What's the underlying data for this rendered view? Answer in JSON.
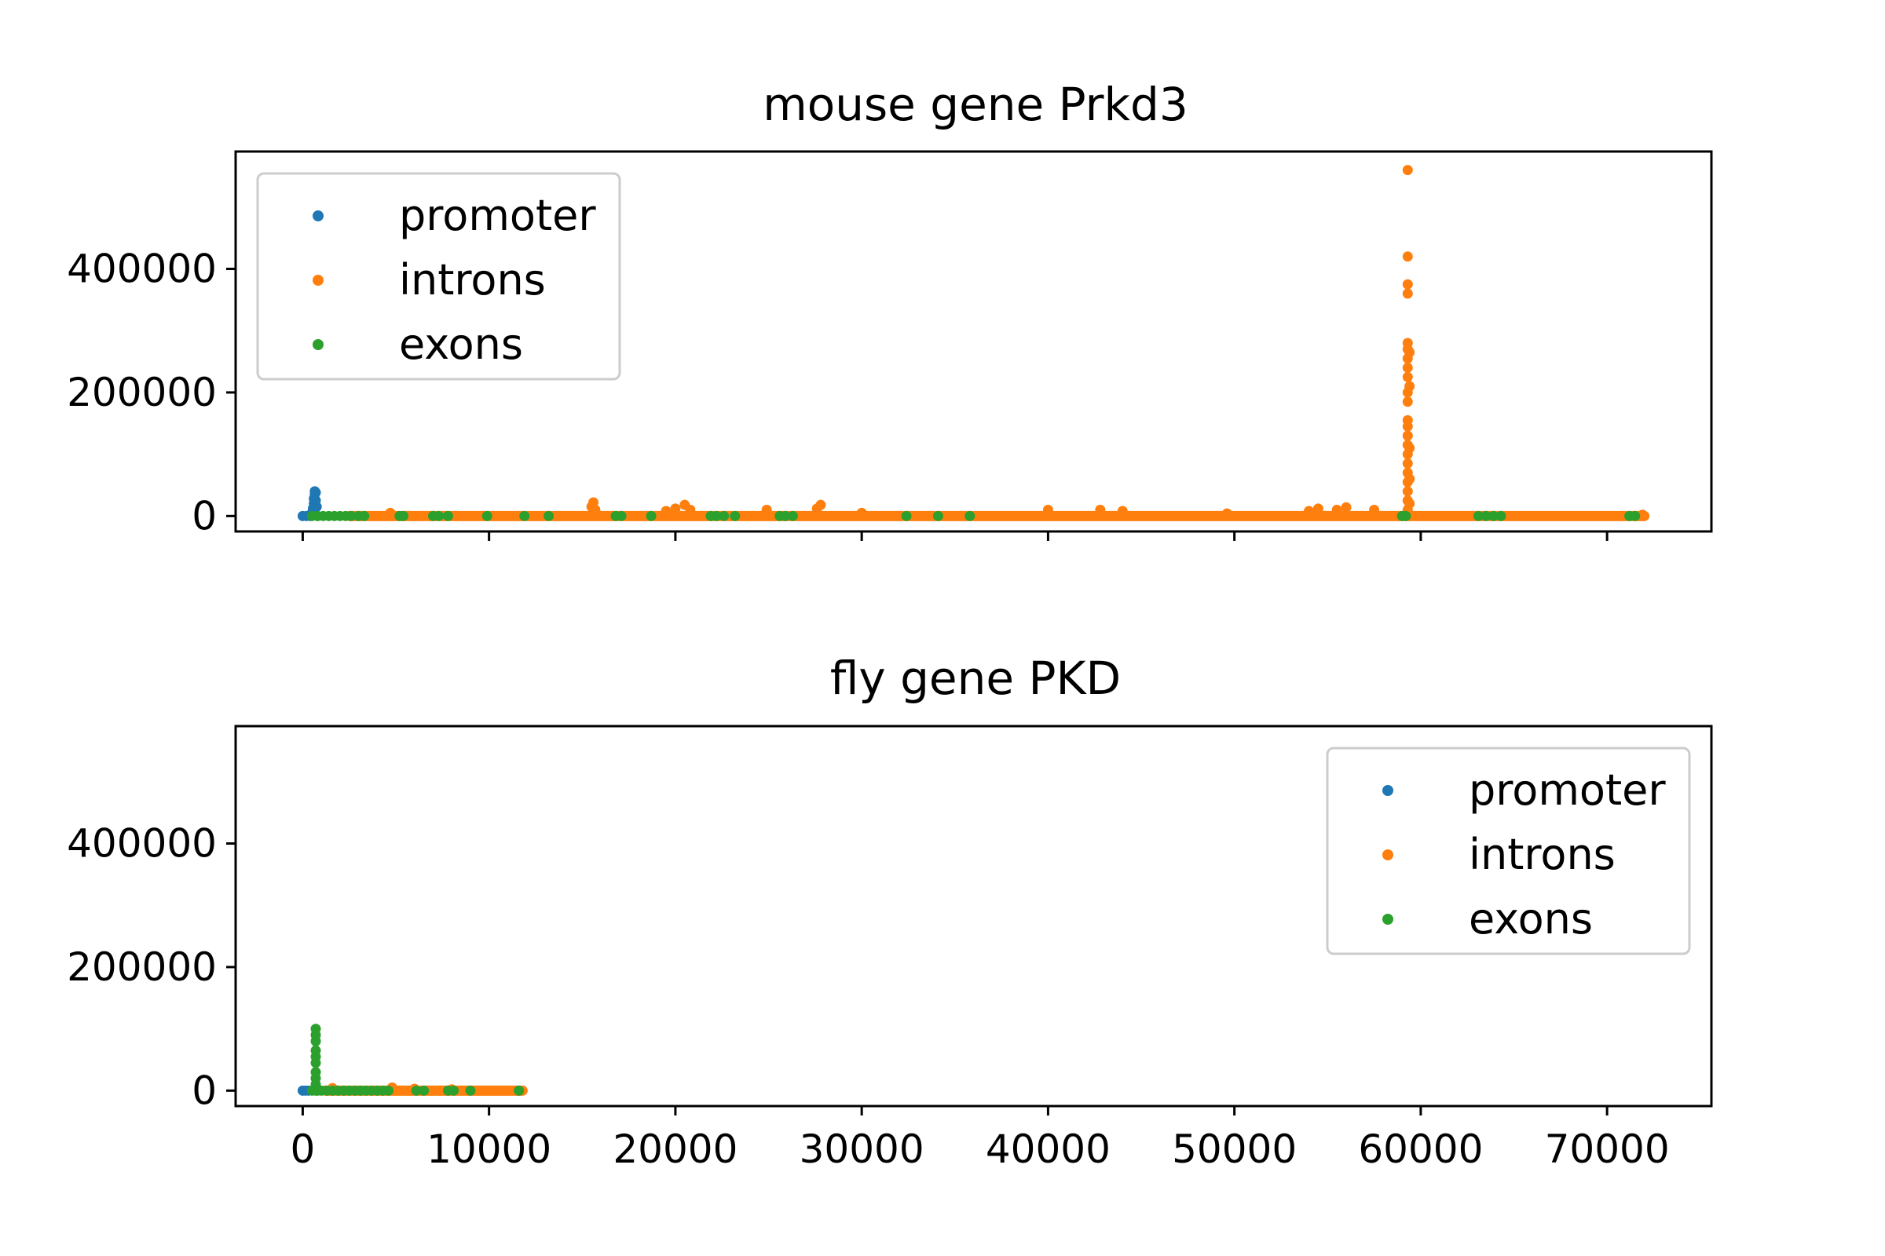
{
  "chart_data": [
    {
      "type": "scatter",
      "title": "mouse gene Prkd3",
      "xlabel": "",
      "ylabel": "",
      "xlim": [
        -3600,
        75600
      ],
      "ylim": [
        -25000,
        590000
      ],
      "x_ticks": [
        0,
        10000,
        20000,
        30000,
        40000,
        50000,
        60000,
        70000
      ],
      "x_tick_labels_visible": false,
      "y_ticks": [
        0,
        200000,
        400000
      ],
      "y_tick_labels": [
        "0",
        "200000",
        "400000"
      ],
      "grid": false,
      "legend_position": "upper-left",
      "series": [
        {
          "name": "promoter",
          "color": "#1f77b4",
          "points": [
            [
              0,
              0
            ],
            [
              200,
              0
            ],
            [
              400,
              0
            ],
            [
              500,
              5000
            ],
            [
              550,
              12000
            ],
            [
              600,
              20000
            ],
            [
              600,
              28000
            ],
            [
              650,
              35000
            ],
            [
              650,
              40000
            ],
            [
              700,
              38000
            ],
            [
              700,
              25000
            ],
            [
              750,
              15000
            ],
            [
              800,
              0
            ]
          ]
        },
        {
          "name": "introns",
          "color": "#ff7f0e",
          "baseline": {
            "from": 2500,
            "to": 72000,
            "value": 0
          },
          "points": [
            [
              4700,
              5000
            ],
            [
              15500,
              15000
            ],
            [
              15600,
              22000
            ],
            [
              15700,
              10000
            ],
            [
              19500,
              8000
            ],
            [
              20000,
              12000
            ],
            [
              20500,
              18000
            ],
            [
              20800,
              10000
            ],
            [
              24900,
              10000
            ],
            [
              27600,
              12000
            ],
            [
              27800,
              18000
            ],
            [
              30000,
              5000
            ],
            [
              40000,
              10000
            ],
            [
              42800,
              10000
            ],
            [
              44000,
              8000
            ],
            [
              49600,
              4000
            ],
            [
              54000,
              8000
            ],
            [
              54500,
              12000
            ],
            [
              55500,
              10000
            ],
            [
              56000,
              14000
            ],
            [
              57500,
              10000
            ],
            [
              59300,
              10000
            ],
            [
              59300,
              25000
            ],
            [
              59300,
              40000
            ],
            [
              59300,
              55000
            ],
            [
              59300,
              70000
            ],
            [
              59300,
              85000
            ],
            [
              59300,
              100000
            ],
            [
              59300,
              115000
            ],
            [
              59300,
              130000
            ],
            [
              59300,
              145000
            ],
            [
              59300,
              155000
            ],
            [
              59300,
              185000
            ],
            [
              59300,
              200000
            ],
            [
              59300,
              225000
            ],
            [
              59300,
              240000
            ],
            [
              59300,
              255000
            ],
            [
              59300,
              270000
            ],
            [
              59300,
              280000
            ],
            [
              59300,
              360000
            ],
            [
              59300,
              375000
            ],
            [
              59300,
              420000
            ],
            [
              59300,
              560000
            ],
            [
              59400,
              20000
            ],
            [
              59400,
              60000
            ],
            [
              59400,
              110000
            ],
            [
              59400,
              210000
            ],
            [
              59400,
              265000
            ],
            [
              71900,
              2000
            ]
          ]
        },
        {
          "name": "exons",
          "color": "#2ca02c",
          "points": [
            [
              500,
              0
            ],
            [
              800,
              0
            ],
            [
              1100,
              0
            ],
            [
              1400,
              0
            ],
            [
              1700,
              0
            ],
            [
              2000,
              0
            ],
            [
              2300,
              0
            ],
            [
              2600,
              0
            ],
            [
              3000,
              0
            ],
            [
              3300,
              0
            ],
            [
              5200,
              0
            ],
            [
              5400,
              0
            ],
            [
              7000,
              0
            ],
            [
              7300,
              0
            ],
            [
              7800,
              0
            ],
            [
              9900,
              0
            ],
            [
              11900,
              0
            ],
            [
              13200,
              0
            ],
            [
              16800,
              0
            ],
            [
              17100,
              0
            ],
            [
              18700,
              0
            ],
            [
              21900,
              0
            ],
            [
              22200,
              0
            ],
            [
              22600,
              0
            ],
            [
              23200,
              0
            ],
            [
              25600,
              0
            ],
            [
              25900,
              0
            ],
            [
              26300,
              0
            ],
            [
              32400,
              0
            ],
            [
              34100,
              0
            ],
            [
              35800,
              0
            ],
            [
              59000,
              0
            ],
            [
              59200,
              0
            ],
            [
              63100,
              0
            ],
            [
              63500,
              0
            ],
            [
              63900,
              0
            ],
            [
              64300,
              0
            ],
            [
              71200,
              0
            ],
            [
              71500,
              0
            ]
          ]
        }
      ]
    },
    {
      "type": "scatter",
      "title": "fly gene PKD",
      "xlabel": "",
      "ylabel": "",
      "xlim": [
        -3600,
        75600
      ],
      "ylim": [
        -25000,
        590000
      ],
      "x_ticks": [
        0,
        10000,
        20000,
        30000,
        40000,
        50000,
        60000,
        70000
      ],
      "x_tick_labels": [
        "0",
        "10000",
        "20000",
        "30000",
        "40000",
        "50000",
        "60000",
        "70000"
      ],
      "y_ticks": [
        0,
        200000,
        400000
      ],
      "y_tick_labels": [
        "0",
        "200000",
        "400000"
      ],
      "grid": false,
      "legend_position": "upper-right",
      "series": [
        {
          "name": "promoter",
          "color": "#1f77b4",
          "points": [
            [
              0,
              0
            ],
            [
              150,
              0
            ],
            [
              300,
              0
            ]
          ]
        },
        {
          "name": "introns",
          "color": "#ff7f0e",
          "baseline": {
            "from": 1200,
            "to": 11800,
            "value": 0
          },
          "points": [
            [
              1600,
              4000
            ],
            [
              4800,
              5000
            ],
            [
              6000,
              3000
            ],
            [
              8000,
              2000
            ],
            [
              11600,
              0
            ]
          ]
        },
        {
          "name": "exons",
          "color": "#2ca02c",
          "points": [
            [
              500,
              0
            ],
            [
              700,
              0
            ],
            [
              700,
              10000
            ],
            [
              700,
              20000
            ],
            [
              700,
              30000
            ],
            [
              700,
              45000
            ],
            [
              700,
              55000
            ],
            [
              700,
              65000
            ],
            [
              700,
              80000
            ],
            [
              700,
              90000
            ],
            [
              700,
              100000
            ],
            [
              800,
              0
            ],
            [
              1000,
              0
            ],
            [
              1300,
              0
            ],
            [
              1600,
              0
            ],
            [
              1900,
              0
            ],
            [
              2200,
              0
            ],
            [
              2500,
              0
            ],
            [
              2800,
              0
            ],
            [
              3100,
              0
            ],
            [
              3400,
              0
            ],
            [
              3700,
              0
            ],
            [
              4000,
              0
            ],
            [
              4300,
              0
            ],
            [
              4600,
              0
            ],
            [
              6100,
              0
            ],
            [
              6500,
              0
            ],
            [
              7800,
              0
            ],
            [
              8100,
              0
            ],
            [
              9000,
              0
            ],
            [
              11600,
              0
            ]
          ]
        }
      ]
    }
  ]
}
